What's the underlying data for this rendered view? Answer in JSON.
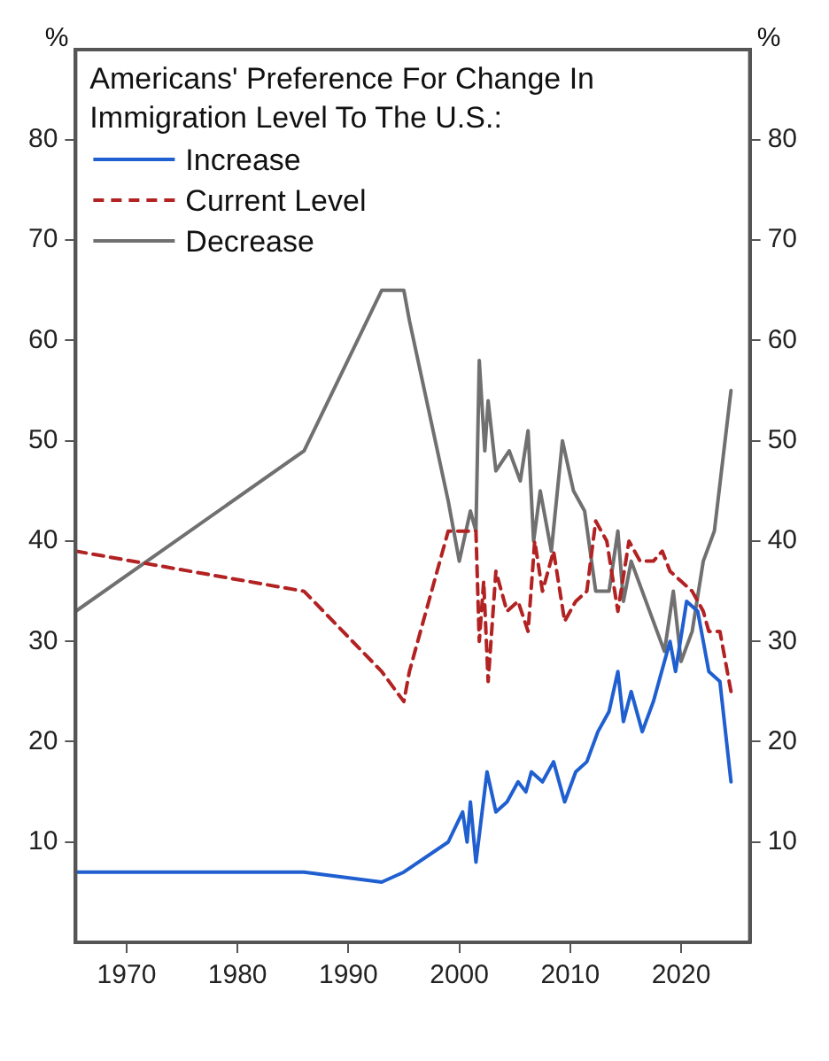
{
  "chart_data": {
    "type": "line",
    "title": "Americans' Preference For Change In Immigration Level To The U.S.:",
    "ylabel": "%",
    "y2label": "%",
    "xlim": [
      1965.4,
      2026.2
    ],
    "xticks": [
      1970,
      1980,
      1990,
      2000,
      2010,
      2020
    ],
    "ylim": [
      0,
      89
    ],
    "yticks": [
      10,
      20,
      30,
      40,
      50,
      60,
      70,
      80
    ],
    "y2lim": [
      0,
      89
    ],
    "y2ticks": [
      10,
      20,
      30,
      40,
      50,
      60,
      70,
      80
    ],
    "grid": false,
    "legend": "top left",
    "marker": "none",
    "series": [
      {
        "name": "Increase",
        "color": "#1f5fd0",
        "line_style": "solid",
        "x": [
          1965.4,
          1986,
          1993,
          1995,
          1999,
          2000.3,
          2000.7,
          2001,
          2001.5,
          2002.5,
          2003.3,
          2004.3,
          2005.3,
          2006,
          2006.5,
          2007.5,
          2008.5,
          2009.5,
          2010.5,
          2011.5,
          2012.5,
          2013.5,
          2014.3,
          2014.8,
          2015.5,
          2016.5,
          2017.5,
          2019,
          2019.5,
          2020.5,
          2021.5,
          2022.5,
          2023.5,
          2024.5
        ],
        "values": [
          7,
          7,
          6,
          7,
          10,
          13,
          10,
          14,
          8,
          17,
          13,
          14,
          16,
          15,
          17,
          16,
          18,
          14,
          17,
          18,
          21,
          23,
          27,
          22,
          25,
          21,
          24,
          30,
          27,
          34,
          33,
          27,
          26,
          16
        ]
      },
      {
        "name": "Current Level",
        "color": "#b22222",
        "line_style": "dashed",
        "x": [
          1965.4,
          1986,
          1993,
          1995,
          1995.5,
          1999,
          2001,
          2001.5,
          2001.8,
          2002.2,
          2002.6,
          2003.3,
          2004.3,
          2005.3,
          2006.2,
          2006.8,
          2007.5,
          2008.5,
          2009.5,
          2010.5,
          2011.5,
          2012.3,
          2013.3,
          2014.3,
          2015.3,
          2016.3,
          2017.5,
          2018.3,
          2019,
          2020,
          2021,
          2022,
          2022.5,
          2023.5,
          2024.5
        ],
        "values": [
          39,
          35,
          27,
          24,
          27,
          41,
          41,
          41,
          30,
          36,
          26,
          37,
          33,
          34,
          31,
          40,
          35,
          39,
          32,
          34,
          35,
          42,
          40,
          33,
          40,
          38,
          38,
          39,
          37,
          36,
          35,
          33,
          31,
          31,
          25
        ]
      },
      {
        "name": "Decrease",
        "color": "#707070",
        "line_style": "solid",
        "x": [
          1965.4,
          1986,
          1993,
          1995,
          1995.5,
          1999,
          2000,
          2001,
          2001.5,
          2001.8,
          2002.3,
          2002.6,
          2003.3,
          2004.5,
          2005.5,
          2006.2,
          2006.7,
          2007.3,
          2008.3,
          2009.3,
          2010.3,
          2011.3,
          2012.3,
          2013.5,
          2014.3,
          2014.8,
          2015.5,
          2016.5,
          2017.5,
          2018.5,
          2019.3,
          2020,
          2021,
          2022,
          2023,
          2024.5
        ],
        "values": [
          33,
          49,
          65,
          65,
          62,
          44,
          38,
          43,
          41,
          58,
          49,
          54,
          47,
          49,
          46,
          51,
          40,
          45,
          39,
          50,
          45,
          43,
          35,
          35,
          41,
          34,
          38,
          35,
          32,
          29,
          35,
          28,
          31,
          38,
          41,
          55
        ]
      }
    ]
  }
}
